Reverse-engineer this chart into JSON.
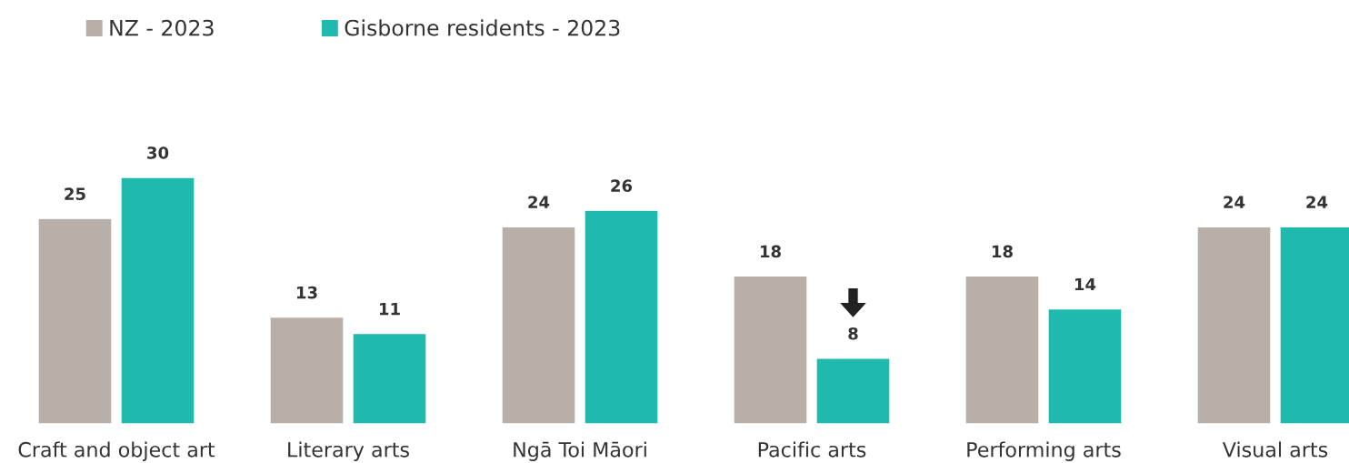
{
  "chart_data": {
    "type": "bar",
    "categories": [
      "Craft and object art",
      "Literary arts",
      "Ngā Toi Māori",
      "Pacific arts",
      "Performing arts",
      "Visual arts"
    ],
    "series": [
      {
        "name": "NZ - 2023",
        "color": "#b8afa9",
        "values": [
          25,
          13,
          24,
          18,
          18,
          24
        ]
      },
      {
        "name": "Gisborne residents - 2023",
        "color": "#20b9ad",
        "values": [
          30,
          11,
          26,
          8,
          14,
          24
        ]
      }
    ],
    "data_labels": true,
    "legend": "top left",
    "grid": false
  }
}
